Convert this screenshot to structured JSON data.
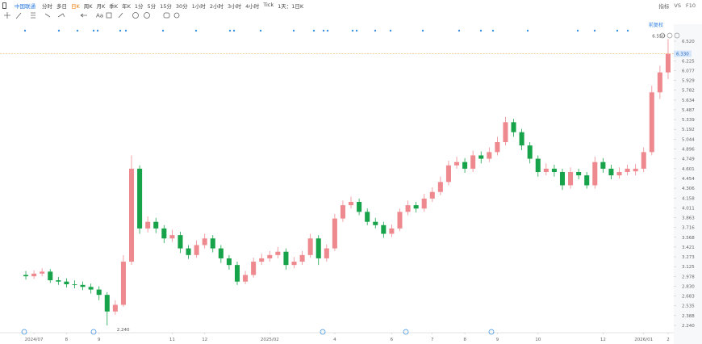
{
  "toolbar": {
    "symbol": "中国联通",
    "periods": [
      "分时",
      "多日",
      "日K",
      "周K",
      "月K",
      "季K",
      "年K",
      "1分",
      "5分",
      "15分",
      "30分",
      "1小时",
      "2小时",
      "3小时",
      "4小时",
      "Tick"
    ],
    "interval": "1天：1日K",
    "right": [
      "指标",
      "VS",
      "F10"
    ],
    "text_tool": "Aa"
  },
  "adjust": "前复权",
  "chart_data": {
    "type": "candlestick",
    "open": [
      3.0,
      2.98,
      3.02,
      3.05,
      2.92,
      2.9,
      2.86,
      2.85,
      2.82,
      2.78,
      2.7,
      2.45,
      2.55,
      3.2,
      4.6,
      3.7,
      3.8,
      3.7,
      3.55,
      3.6,
      3.4,
      3.3,
      3.45,
      3.55,
      3.4,
      3.25,
      3.15,
      2.9,
      3.0,
      3.2,
      3.25,
      3.3,
      3.35,
      3.15,
      3.2,
      3.3,
      3.55,
      3.25,
      3.4,
      3.85,
      4.05,
      4.1,
      3.95,
      3.8,
      3.75,
      3.62,
      3.7,
      3.95,
      4.05,
      4.0,
      4.15,
      4.25,
      4.4,
      4.65,
      4.7,
      4.6,
      4.8,
      4.75,
      4.85,
      5.0,
      5.3,
      5.15,
      4.95,
      4.75,
      4.55,
      4.6,
      4.55,
      4.35,
      4.55,
      4.5,
      4.35,
      4.7,
      4.6,
      4.5,
      4.55,
      4.56,
      4.6,
      4.85,
      5.75,
      6.05
    ],
    "high": [
      3.06,
      3.07,
      3.1,
      3.09,
      2.97,
      2.95,
      2.92,
      2.9,
      2.87,
      2.83,
      2.74,
      2.62,
      3.3,
      4.8,
      4.65,
      3.88,
      3.86,
      3.75,
      3.68,
      3.65,
      3.45,
      3.52,
      3.62,
      3.6,
      3.45,
      3.3,
      3.2,
      3.06,
      3.26,
      3.32,
      3.36,
      3.42,
      3.4,
      3.27,
      3.36,
      3.62,
      3.6,
      3.46,
      3.92,
      4.12,
      4.18,
      4.15,
      4.0,
      3.86,
      3.8,
      3.76,
      4.0,
      4.12,
      4.1,
      4.22,
      4.32,
      4.48,
      4.72,
      4.78,
      4.76,
      4.87,
      4.86,
      4.92,
      5.08,
      5.38,
      5.35,
      5.2,
      5.0,
      4.8,
      4.68,
      4.66,
      4.6,
      4.62,
      4.6,
      4.55,
      4.78,
      4.76,
      4.66,
      4.62,
      4.66,
      4.67,
      4.92,
      5.85,
      6.15,
      6.55
    ],
    "low": [
      2.93,
      2.94,
      2.98,
      2.88,
      2.85,
      2.81,
      2.8,
      2.77,
      2.72,
      2.62,
      2.24,
      2.4,
      2.52,
      3.15,
      3.62,
      3.64,
      3.63,
      3.48,
      3.5,
      3.33,
      3.24,
      3.26,
      3.4,
      3.34,
      3.18,
      3.08,
      2.85,
      2.86,
      2.96,
      3.15,
      3.2,
      3.25,
      3.08,
      3.1,
      3.15,
      3.26,
      3.15,
      3.2,
      3.36,
      3.8,
      4.0,
      3.9,
      3.75,
      3.7,
      3.56,
      3.57,
      3.66,
      3.9,
      3.94,
      3.95,
      4.1,
      4.2,
      4.35,
      4.6,
      4.54,
      4.55,
      4.68,
      4.7,
      4.8,
      4.95,
      5.08,
      4.88,
      4.68,
      4.48,
      4.5,
      4.48,
      4.28,
      4.3,
      4.44,
      4.3,
      4.3,
      4.54,
      4.44,
      4.45,
      4.5,
      4.5,
      4.55,
      4.8,
      5.65,
      5.95
    ],
    "close": [
      2.98,
      3.02,
      3.05,
      2.92,
      2.9,
      2.86,
      2.85,
      2.82,
      2.78,
      2.7,
      2.45,
      2.55,
      3.2,
      4.6,
      3.7,
      3.8,
      3.7,
      3.55,
      3.6,
      3.4,
      3.3,
      3.45,
      3.55,
      3.4,
      3.25,
      3.15,
      2.9,
      3.0,
      3.2,
      3.25,
      3.3,
      3.35,
      3.15,
      3.2,
      3.3,
      3.55,
      3.25,
      3.4,
      3.85,
      4.05,
      4.1,
      3.95,
      3.8,
      3.75,
      3.62,
      3.7,
      3.95,
      4.05,
      4.0,
      4.15,
      4.25,
      4.4,
      4.65,
      4.7,
      4.6,
      4.8,
      4.75,
      4.85,
      5.0,
      5.3,
      5.15,
      4.95,
      4.75,
      4.55,
      4.6,
      4.55,
      4.35,
      4.55,
      4.5,
      4.35,
      4.7,
      4.6,
      4.5,
      4.55,
      4.6,
      4.6,
      4.85,
      5.75,
      6.05,
      6.33
    ],
    "up_color": "#ee8a8f",
    "down_color": "#17a34a",
    "ylim": [
      2.24,
      6.52
    ],
    "yticks": [
      {
        "value": 6.52,
        "label": "6.520"
      },
      6.225,
      6.077,
      5.929,
      5.782,
      5.634,
      5.487,
      5.339,
      5.192,
      5.044,
      4.896,
      4.749,
      4.601,
      4.454,
      4.306,
      4.158,
      4.011,
      3.863,
      3.716,
      3.568,
      3.421,
      3.273,
      3.125,
      2.978,
      {
        "value": 2.83,
        "label": "2.830"
      },
      2.683,
      2.535,
      2.388,
      {
        "value": 2.24,
        "label": "2.240"
      }
    ],
    "xticks": [
      {
        "value": 1,
        "label": "2024/07"
      },
      {
        "value": 5,
        "label": "8"
      },
      {
        "value": 9,
        "label": "9"
      },
      {
        "value": 18,
        "label": "11"
      },
      {
        "value": 22,
        "label": "12"
      },
      {
        "value": 30,
        "label": "2025/02"
      },
      {
        "value": 38,
        "label": "4"
      },
      {
        "value": 45,
        "label": "6"
      },
      {
        "value": 50,
        "label": "7"
      },
      {
        "value": 54,
        "label": "8"
      },
      {
        "value": 58,
        "label": "9"
      },
      {
        "value": 63,
        "label": "10"
      },
      {
        "value": 71,
        "label": "12"
      },
      {
        "value": 76,
        "label": "2026/01"
      },
      {
        "value": 79,
        "label": "2"
      }
    ],
    "high_label": {
      "value": 6.55,
      "label": "6.550"
    },
    "low_label": {
      "value": 2.24,
      "label": "2.240"
    },
    "last_price": {
      "value": 6.33,
      "label": "6.330"
    },
    "last_price_color": "#f0a040",
    "grid": false
  }
}
